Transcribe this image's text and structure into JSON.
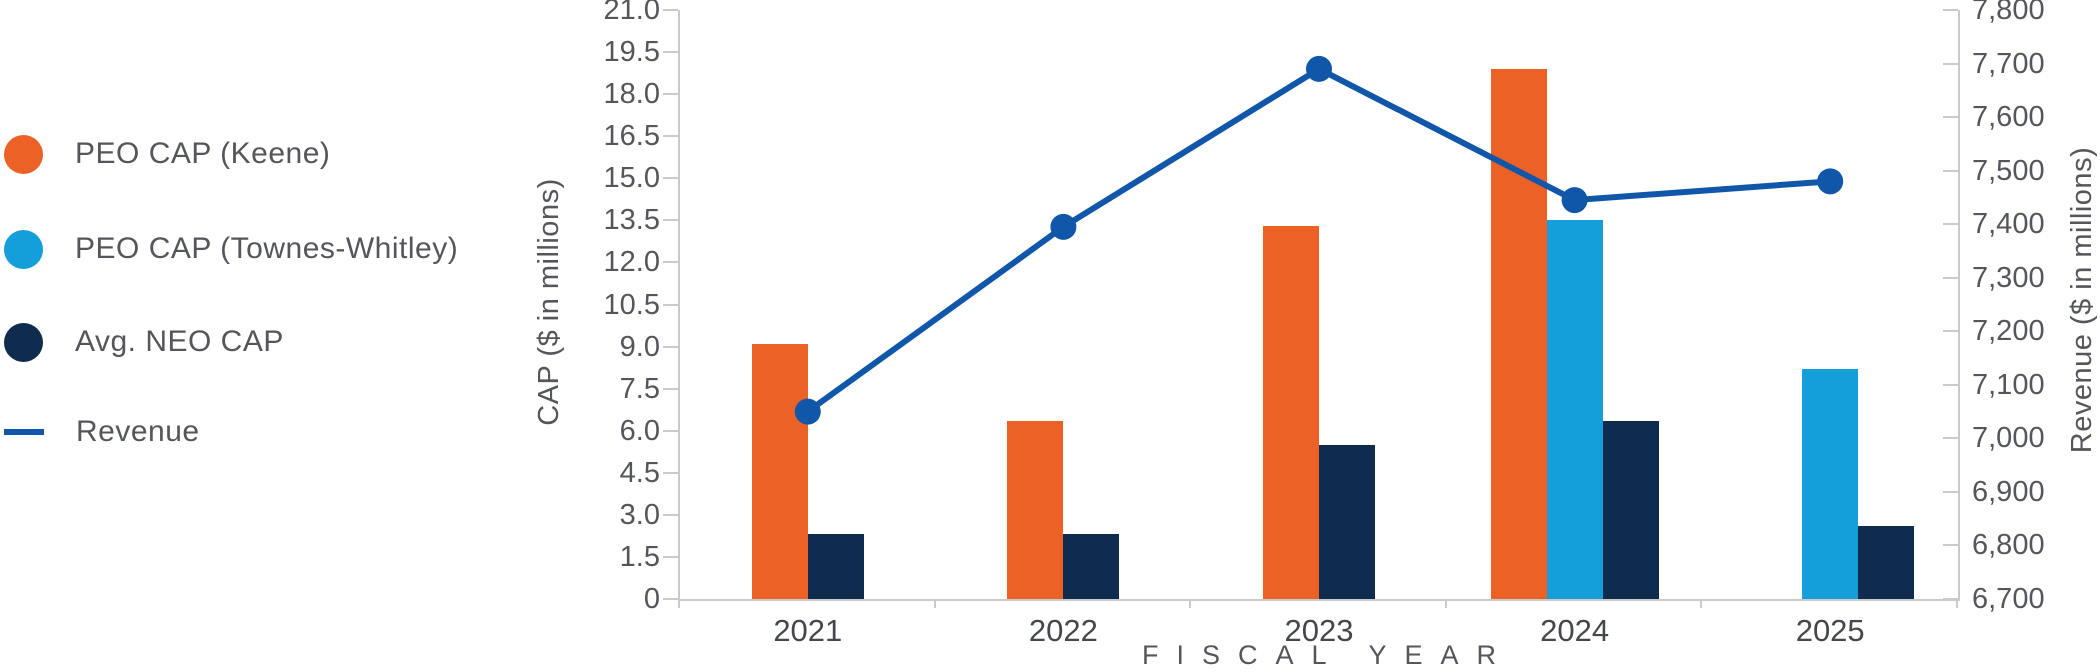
{
  "legend": {
    "items": [
      {
        "label": "PEO CAP (Keene)",
        "marker": "circle",
        "color": "#EC6126"
      },
      {
        "label": "PEO CAP (Townes-Whitley)",
        "marker": "circle",
        "color": "#149FDB"
      },
      {
        "label": "Avg. NEO CAP",
        "marker": "circle",
        "color": "#0F2B4D"
      },
      {
        "label": "Revenue",
        "marker": "line",
        "color": "#1157A9"
      }
    ]
  },
  "chart_data": {
    "type": "bar+line combo",
    "categories": [
      "2021",
      "2022",
      "2023",
      "2024",
      "2025"
    ],
    "series": [
      {
        "name": "PEO CAP (Keene)",
        "type": "bar",
        "axis": "left",
        "color": "#EC6126",
        "values": [
          9.1,
          6.35,
          13.3,
          18.9,
          null
        ]
      },
      {
        "name": "PEO CAP (Townes-Whitley)",
        "type": "bar",
        "axis": "left",
        "color": "#149FDB",
        "values": [
          null,
          null,
          null,
          13.5,
          8.2
        ]
      },
      {
        "name": "Avg. NEO CAP",
        "type": "bar",
        "axis": "left",
        "color": "#0F2B4D",
        "values": [
          2.3,
          2.3,
          5.5,
          6.35,
          2.6
        ]
      },
      {
        "name": "Revenue",
        "type": "line",
        "axis": "right",
        "color": "#1157A9",
        "values": [
          7050,
          7395,
          7690,
          7445,
          7480
        ]
      }
    ],
    "left_axis": {
      "title": "CAP ($ in millions)",
      "min": 0,
      "max": 21,
      "step": 1.5,
      "tick_labels": [
        "0",
        "1.5",
        "3.0",
        "4.5",
        "6.0",
        "7.5",
        "9.0",
        "10.5",
        "12.0",
        "13.5",
        "15.0",
        "16.5",
        "18.0",
        "19.5",
        "21.0"
      ]
    },
    "right_axis": {
      "title": "Revenue ($ in millions)",
      "min": 6700,
      "max": 7800,
      "step": 100,
      "tick_labels": [
        "6,700",
        "6,800",
        "6,900",
        "7,000",
        "7,100",
        "7,200",
        "7,300",
        "7,400",
        "7,500",
        "7,600",
        "7,700",
        "7,800"
      ]
    },
    "x_axis": {
      "title": "FISCAL YEAR"
    },
    "legend_position": "left",
    "grid": false
  },
  "colors": {
    "bar_orange": "#EC6126",
    "bar_light_blue": "#149FDB",
    "bar_navy": "#0F2B4D",
    "line_blue": "#1157A9",
    "axis_gray": "#C9CACB",
    "text_gray": "#54565B"
  }
}
